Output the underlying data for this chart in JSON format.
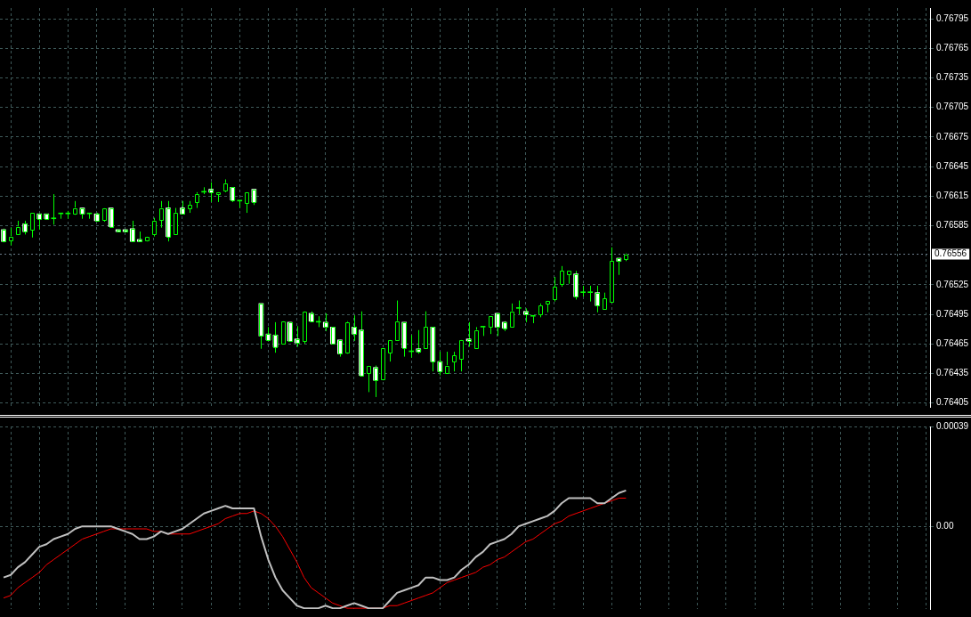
{
  "chart_data": [
    {
      "type": "candlestick",
      "color": "#00ff00",
      "grid": true,
      "tick_labels": "y",
      "colors": [
        "#ffffff",
        "#000000",
        "#000000",
        "#ffffff",
        "#000000",
        "#ffffff",
        "#ffffff",
        "#00ff00",
        "#00ff00",
        "#00ff00",
        "#000000",
        "#ffffff",
        "#00ff00",
        "#ffffff",
        "#000000",
        "#ffffff",
        "#ffffff",
        "#ffffff",
        "#ffffff",
        "#ffffff",
        "#000000",
        "#000000",
        "#000000",
        "#ffffff",
        "#000000",
        "#ffffff",
        "#000000",
        "#000000",
        "#00ff00",
        "#ffffff",
        "#000000",
        "#000000",
        "#ffffff",
        "#00ff00",
        "#000000",
        "#ffffff",
        "#ffffff",
        "#ffffff",
        "#ffffff",
        "#000000",
        "#ffffff",
        "#ffffff",
        "#000000",
        "#ffffff",
        "#00ff00",
        "#ffffff",
        "#ffffff",
        "#ffffff",
        "#000000",
        "#ffffff",
        "#ffffff",
        "#000000",
        "#ffffff",
        "#000000",
        "#000000",
        "#000000",
        "#ffffff",
        "#00ff00",
        "#ffffff",
        "#000000",
        "#ffffff",
        "#ffffff",
        "#000000",
        "#000000",
        "#000000",
        "#ffffff",
        "#000000",
        "#00ff00",
        "#000000",
        "#ffffff",
        "#ffffff",
        "#000000",
        "#00ff00",
        "#ffffff",
        "#00ff00",
        "#000000",
        "#000000",
        "#000000",
        "#000000",
        "#000000",
        "#ffffff",
        "#00ff00",
        "#00ff00",
        "#ffffff",
        "#000000",
        "#000000",
        "#ffffff",
        "#000000",
        null,
        null,
        null,
        null,
        null,
        null,
        null,
        null,
        null,
        null,
        null,
        null,
        null,
        null,
        null,
        null,
        null,
        null,
        null,
        null,
        null,
        null,
        null,
        null,
        null,
        null,
        null,
        null,
        null,
        null,
        null,
        null,
        null,
        null,
        null,
        null,
        null,
        null,
        null,
        null,
        null,
        null
      ],
      "categories": [
        null,
        null,
        null,
        null,
        null,
        null,
        null,
        null,
        null,
        null,
        null,
        null,
        null,
        null,
        null,
        null,
        null,
        null,
        null,
        null,
        null,
        null,
        null,
        null,
        null,
        null,
        null,
        null,
        null,
        null,
        null,
        null,
        null,
        null,
        null,
        null,
        null,
        null,
        null,
        null,
        null,
        null,
        null,
        null,
        null,
        null,
        null,
        null,
        null,
        null,
        null,
        null,
        null,
        null,
        null,
        null,
        null,
        null,
        null,
        null,
        null,
        null,
        null,
        null,
        null,
        null,
        null,
        null,
        null,
        null,
        null,
        null,
        null,
        null,
        null,
        null,
        null,
        null,
        null,
        null,
        null,
        null,
        null,
        null,
        null,
        null,
        null,
        null,
        null,
        null,
        null,
        null,
        null,
        null,
        null,
        null,
        null,
        null,
        null,
        null,
        null,
        null,
        null,
        null,
        null,
        null,
        null,
        null,
        null,
        null,
        null,
        null,
        null,
        null,
        null,
        null,
        null,
        null,
        null,
        null,
        null,
        null,
        null,
        null,
        null,
        null,
        null,
        null,
        null,
        null
      ],
      "ohlc": [
        [
          0.76581,
          0.76582,
          0.76568,
          0.76569
        ],
        [
          0.7657,
          0.76583,
          0.76565,
          0.76574
        ],
        [
          0.76576,
          0.7659,
          0.76576,
          0.76584
        ],
        [
          0.76587,
          0.7659,
          0.76576,
          0.76579
        ],
        [
          0.76581,
          0.76598,
          0.76573,
          0.76598
        ],
        [
          0.76597,
          0.76597,
          0.76581,
          0.76592
        ],
        [
          0.76597,
          0.76597,
          0.76592,
          0.76592
        ],
        [
          0.76592,
          0.76617,
          0.76586,
          0.76592
        ],
        [
          0.76597,
          0.76598,
          0.76592,
          0.76597
        ],
        [
          0.76597,
          0.766,
          0.76592,
          0.76597
        ],
        [
          0.76597,
          0.7661,
          0.76596,
          0.76603
        ],
        [
          0.76603,
          0.76603,
          0.76592,
          0.76597
        ],
        [
          0.76597,
          0.76598,
          0.76592,
          0.76597
        ],
        [
          0.76597,
          0.76598,
          0.7659,
          0.7659
        ],
        [
          0.76591,
          0.76603,
          0.76589,
          0.76603
        ],
        [
          0.76603,
          0.76603,
          0.76584,
          0.76584
        ],
        [
          0.76581,
          0.76581,
          0.76579,
          0.76579
        ],
        [
          0.76581,
          0.76581,
          0.76579,
          0.76579
        ],
        [
          0.76582,
          0.7659,
          0.76569,
          0.76569
        ],
        [
          0.76571,
          0.76579,
          0.76569,
          0.76569
        ],
        [
          0.7657,
          0.76574,
          0.76569,
          0.76574
        ],
        [
          0.76576,
          0.76593,
          0.76574,
          0.7659
        ],
        [
          0.76591,
          0.7661,
          0.76583,
          0.76603
        ],
        [
          0.76603,
          0.7661,
          0.76569,
          0.76574
        ],
        [
          0.76576,
          0.76603,
          0.76576,
          0.76598
        ],
        [
          0.76603,
          0.7661,
          0.76597,
          0.76597
        ],
        [
          0.76603,
          0.7661,
          0.76598,
          0.76606
        ],
        [
          0.76609,
          0.76619,
          0.76603,
          0.76617
        ],
        [
          0.76619,
          0.76624,
          0.76617,
          0.76619
        ],
        [
          0.76622,
          0.76629,
          0.76609,
          0.76619
        ],
        [
          0.76617,
          0.76619,
          0.76609,
          0.76619
        ],
        [
          0.76621,
          0.76632,
          0.76619,
          0.76628
        ],
        [
          0.76624,
          0.76624,
          0.76609,
          0.76611
        ],
        [
          0.7661,
          0.76611,
          0.76603,
          0.7661
        ],
        [
          0.76608,
          0.76619,
          0.76598,
          0.76619
        ],
        [
          0.76622,
          0.76622,
          0.76606,
          0.76609
        ],
        [
          0.76506,
          0.76506,
          0.7646,
          0.76473
        ],
        [
          0.76475,
          0.76482,
          0.76469,
          0.76469
        ],
        [
          0.76474,
          0.76487,
          0.76456,
          0.76462
        ],
        [
          0.76465,
          0.76488,
          0.76465,
          0.76488
        ],
        [
          0.76487,
          0.76487,
          0.76468,
          0.76468
        ],
        [
          0.7647,
          0.76483,
          0.76462,
          0.76466
        ],
        [
          0.76468,
          0.76498,
          0.76465,
          0.76498
        ],
        [
          0.76496,
          0.76498,
          0.76488,
          0.76488
        ],
        [
          0.76487,
          0.76493,
          0.76482,
          0.76487
        ],
        [
          0.76487,
          0.76496,
          0.76478,
          0.76482
        ],
        [
          0.76482,
          0.76482,
          0.76465,
          0.76465
        ],
        [
          0.76469,
          0.76469,
          0.76452,
          0.76455
        ],
        [
          0.76456,
          0.76488,
          0.76455,
          0.76487
        ],
        [
          0.76482,
          0.76494,
          0.76468,
          0.76475
        ],
        [
          0.76479,
          0.76498,
          0.76433,
          0.76433
        ],
        [
          0.76435,
          0.76443,
          0.76416,
          0.76443
        ],
        [
          0.76441,
          0.76443,
          0.76411,
          0.76428
        ],
        [
          0.76429,
          0.76461,
          0.76428,
          0.76461
        ],
        [
          0.76456,
          0.76469,
          0.76447,
          0.76469
        ],
        [
          0.76469,
          0.76509,
          0.76468,
          0.76488
        ],
        [
          0.76487,
          0.76487,
          0.76452,
          0.76461
        ],
        [
          0.76457,
          0.76474,
          0.76451,
          0.76457
        ],
        [
          0.7646,
          0.76479,
          0.76455,
          0.76457
        ],
        [
          0.76461,
          0.76498,
          0.76461,
          0.76482
        ],
        [
          0.76482,
          0.76482,
          0.76437,
          0.76447
        ],
        [
          0.76447,
          0.76457,
          0.76433,
          0.76437
        ],
        [
          0.76435,
          0.76457,
          0.76435,
          0.76443
        ],
        [
          0.76447,
          0.76457,
          0.76437,
          0.76453
        ],
        [
          0.7645,
          0.76469,
          0.76437,
          0.76469
        ],
        [
          0.7647,
          0.76487,
          0.76462,
          0.76468
        ],
        [
          0.76461,
          0.76482,
          0.76461,
          0.76479
        ],
        [
          0.76482,
          0.76482,
          0.76473,
          0.76482
        ],
        [
          0.76482,
          0.76493,
          0.76475,
          0.76493
        ],
        [
          0.76496,
          0.76496,
          0.76473,
          0.76482
        ],
        [
          0.76487,
          0.76488,
          0.76478,
          0.76481
        ],
        [
          0.76482,
          0.76506,
          0.76482,
          0.76498
        ],
        [
          0.76501,
          0.76509,
          0.76495,
          0.76501
        ],
        [
          0.76498,
          0.76501,
          0.76487,
          0.76495
        ],
        [
          0.76493,
          0.76493,
          0.76486,
          0.76493
        ],
        [
          0.76495,
          0.76506,
          0.76492,
          0.76504
        ],
        [
          0.76506,
          0.76509,
          0.76497,
          0.76509
        ],
        [
          0.7651,
          0.76533,
          0.76508,
          0.76523
        ],
        [
          0.76526,
          0.76544,
          0.76523,
          0.76539
        ],
        [
          0.76536,
          0.76539,
          0.76526,
          0.76539
        ],
        [
          0.76536,
          0.76539,
          0.7651,
          0.76513
        ],
        [
          0.76517,
          0.76524,
          0.76513,
          0.76517
        ],
        [
          0.76517,
          0.76524,
          0.76508,
          0.76517
        ],
        [
          0.76517,
          0.76524,
          0.76497,
          0.76504
        ],
        [
          0.765,
          0.76517,
          0.765,
          0.76511
        ],
        [
          0.76508,
          0.76563,
          0.76508,
          0.76549
        ],
        [
          0.76552,
          0.76552,
          0.76535,
          0.76549
        ],
        [
          0.76551,
          0.76557,
          0.76549,
          0.76556
        ],
        null,
        null,
        null,
        null,
        null,
        null,
        null,
        null,
        null,
        null,
        null,
        null,
        null,
        null,
        null,
        null,
        null,
        null,
        null,
        null,
        null,
        null,
        null,
        null,
        null,
        null,
        null,
        null,
        null,
        null,
        null,
        null,
        null,
        null,
        null,
        null,
        null,
        null,
        null,
        null,
        null,
        null
      ],
      "ylim": [
        0.76401,
        0.76806
      ],
      "yticks": [
        0.76405,
        0.76435,
        0.76465,
        0.76495,
        0.76525,
        0.76585,
        0.76615,
        0.76645,
        0.76675,
        0.76705,
        0.76735,
        0.76765,
        0.76795
      ],
      "ref_lines": [
        {
          "axis": "y",
          "value": 0.76556,
          "label": "0.76556",
          "color": "#708090",
          "line_style": "dotted"
        }
      ]
    },
    {
      "type": "line",
      "grid": true,
      "tick_labels": "y",
      "categories": [
        null,
        null,
        null,
        null,
        null,
        null,
        null,
        null,
        null,
        null,
        null,
        null,
        null,
        null,
        null,
        null,
        null,
        null,
        null,
        null,
        null,
        null,
        null,
        null,
        null,
        null,
        null,
        null,
        null,
        null,
        null,
        null,
        null,
        null,
        null,
        null,
        null,
        null,
        null,
        null,
        null,
        null,
        null,
        null,
        null,
        null,
        null,
        null,
        null,
        null,
        null,
        null,
        null,
        null,
        null,
        null,
        null,
        null,
        null,
        null,
        null,
        null,
        null,
        null,
        null,
        null,
        null,
        null,
        null,
        null,
        null,
        null,
        null,
        null,
        null,
        null,
        null,
        null,
        null,
        null,
        null,
        null,
        null,
        null,
        null,
        null,
        null,
        null,
        null,
        null,
        null,
        null,
        null,
        null,
        null,
        null,
        null,
        null,
        null,
        null,
        null,
        null,
        null,
        null,
        null,
        null,
        null,
        null,
        null,
        null,
        null,
        null,
        null,
        null,
        null,
        null,
        null,
        null,
        null,
        null,
        null,
        null,
        null,
        null,
        null,
        null,
        null,
        null,
        null,
        null
      ],
      "series": [
        {
          "color": "#c0c0c0",
          "values": [
            -0.0002,
            -0.00019,
            -0.00016,
            -0.00014,
            -0.00011,
            -8e-05,
            -7e-05,
            -5e-05,
            -4e-05,
            -3e-05,
            -1e-05,
            0,
            0,
            0,
            0,
            0,
            -1e-05,
            -2e-05,
            -3e-05,
            -5e-05,
            -5e-05,
            -4e-05,
            -2e-05,
            -3e-05,
            -2e-05,
            -1e-05,
            1e-05,
            3e-05,
            5e-05,
            6e-05,
            7e-05,
            8e-05,
            7e-05,
            7e-05,
            7e-05,
            7e-05,
            -4e-05,
            -0.00013,
            -0.0002,
            -0.00025,
            -0.00028,
            -0.00031,
            -0.00032,
            -0.00032,
            -0.00032,
            -0.00031,
            -0.00032,
            -0.00032,
            -0.00031,
            -0.0003,
            -0.00031,
            -0.00032,
            -0.00032,
            -0.00032,
            -0.00029,
            -0.00026,
            -0.00025,
            -0.00024,
            -0.00023,
            -0.0002,
            -0.0002,
            -0.00021,
            -0.00021,
            -0.0002,
            -0.00017,
            -0.00015,
            -0.00012,
            -0.0001,
            -7e-05,
            -6e-05,
            -5e-05,
            -3e-05,
            0,
            1e-05,
            2e-05,
            3e-05,
            4e-05,
            6e-05,
            9e-05,
            0.00011,
            0.00011,
            0.00011,
            0.00011,
            9e-05,
            9e-05,
            0.00011,
            0.00013,
            0.00014,
            null,
            null,
            null,
            null,
            null,
            null,
            null,
            null,
            null,
            null,
            null,
            null,
            null,
            null,
            null,
            null,
            null,
            null,
            null,
            null,
            null,
            null,
            null,
            null,
            null,
            null,
            null,
            null,
            null,
            null,
            null,
            null,
            null,
            null,
            null,
            null,
            null,
            null,
            null,
            null,
            null,
            null
          ]
        },
        {
          "color": "#ff0000",
          "values": [
            -0.00028,
            -0.00027,
            -0.00024,
            -0.00022,
            -0.0002,
            -0.00018,
            -0.00015,
            -0.00013,
            -0.00011,
            -9e-05,
            -7e-05,
            -5e-05,
            -4e-05,
            -3e-05,
            -2e-05,
            -1e-05,
            -1e-05,
            -1e-05,
            -1e-05,
            -1e-05,
            -1e-05,
            -2e-05,
            -2e-05,
            -3e-05,
            -3e-05,
            -3e-05,
            -3e-05,
            -2e-05,
            -1e-05,
            0,
            1e-05,
            3e-05,
            4e-05,
            5e-05,
            5e-05,
            6e-05,
            5e-05,
            3e-05,
            0,
            -4e-05,
            -9e-05,
            -0.00014,
            -0.0002,
            -0.00024,
            -0.00026,
            -0.00028,
            -0.0003,
            -0.00031,
            -0.00032,
            -0.00032,
            -0.00032,
            -0.00032,
            -0.00032,
            -0.00032,
            -0.00031,
            -0.00031,
            -0.0003,
            -0.00029,
            -0.00028,
            -0.00027,
            -0.00026,
            -0.00024,
            -0.00022,
            -0.00021,
            -0.0002,
            -0.00019,
            -0.00018,
            -0.00016,
            -0.00015,
            -0.00013,
            -0.00012,
            -0.0001,
            -8e-05,
            -6e-05,
            -5e-05,
            -3e-05,
            -1e-05,
            1e-05,
            2e-05,
            4e-05,
            5e-05,
            6e-05,
            7e-05,
            8e-05,
            9e-05,
            0.0001,
            0.00011,
            0.00011,
            null,
            null,
            null,
            null,
            null,
            null,
            null,
            null,
            null,
            null,
            null,
            null,
            null,
            null,
            null,
            null,
            null,
            null,
            null,
            null,
            null,
            null,
            null,
            null,
            null,
            null,
            null,
            null,
            null,
            null,
            null,
            null,
            null,
            null,
            null,
            null,
            null,
            null,
            null,
            null,
            null,
            null
          ]
        }
      ],
      "ylim": [
        -0.000323,
        0.00039
      ],
      "yticks": [
        {
          "value": 0,
          "label": "0.00"
        },
        0.00039
      ]
    }
  ]
}
